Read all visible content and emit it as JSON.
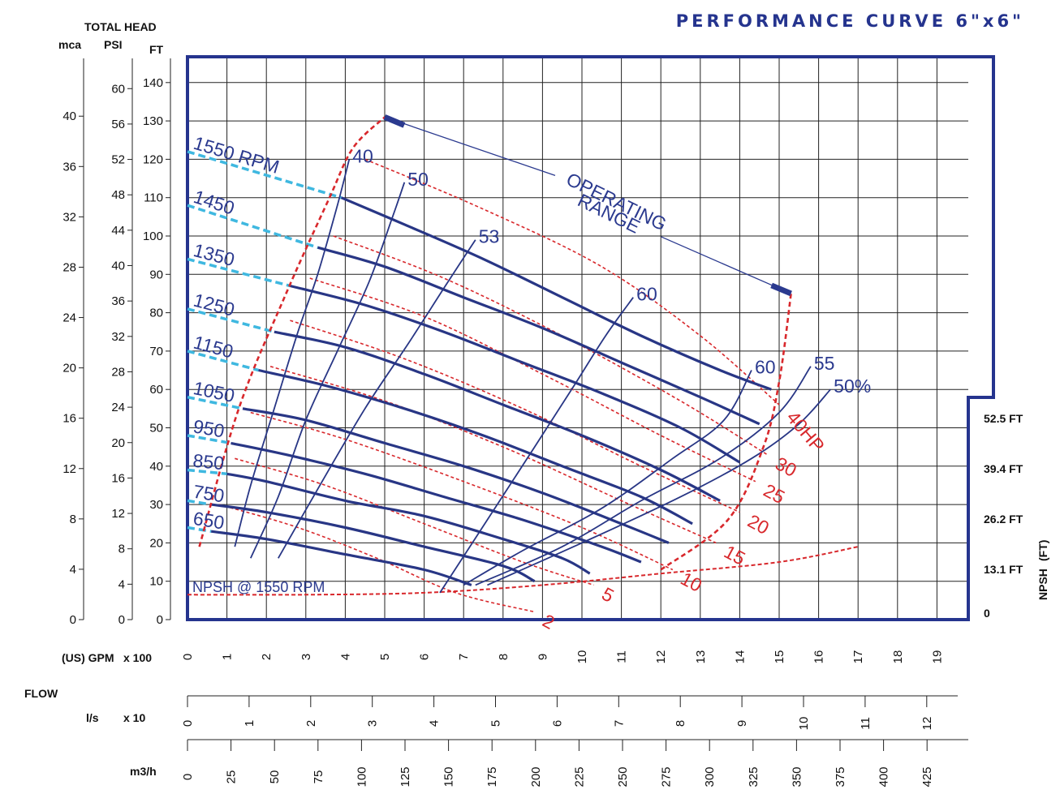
{
  "title": "PERFORMANCE CURVE  6\"x6\"",
  "colors": {
    "frame": "#25348e",
    "grid": "#222222",
    "speed_curve": "#283685",
    "efficiency_curve": "#283685",
    "power_curve": "#d8282c",
    "npsh_curve": "#d8282c",
    "extension": "#3fb8e0",
    "operating_range_line": "#2b3a8f"
  },
  "axes": {
    "total_head_label": "TOTAL HEAD",
    "mca_label": "mca",
    "psi_label": "PSI",
    "ft_label": "FT",
    "gpm_label": "(US) GPM",
    "gpm_mult": "x 100",
    "flow_label": "FLOW",
    "ls_label": "l/s",
    "ls_mult": "x 10",
    "m3h_label": "m3/h",
    "npsh_label": "NPSH",
    "npsh_unit": "(FT)"
  },
  "chart_data": {
    "type": "line",
    "title": "PERFORMANCE CURVE  6\"x6\"",
    "xlabel": "(US) GPM x 100",
    "ylabel": "TOTAL HEAD FT",
    "xlim": [
      0,
      20
    ],
    "ylim": [
      0,
      146
    ],
    "grid": true,
    "x_ticks": [
      "0",
      "1",
      "2",
      "3",
      "4",
      "5",
      "6",
      "7",
      "8",
      "9",
      "10",
      "11",
      "12",
      "13",
      "14",
      "15",
      "16",
      "17",
      "18",
      "19"
    ],
    "ft_ticks": [
      "0",
      "10",
      "20",
      "30",
      "40",
      "50",
      "60",
      "70",
      "80",
      "90",
      "100",
      "110",
      "120",
      "130",
      "140"
    ],
    "psi_ticks": [
      "0",
      "4",
      "8",
      "12",
      "16",
      "20",
      "24",
      "28",
      "32",
      "36",
      "40",
      "44",
      "48",
      "52",
      "56",
      "60"
    ],
    "mca_ticks": [
      "0",
      "4",
      "8",
      "12",
      "16",
      "20",
      "24",
      "28",
      "32",
      "36",
      "40"
    ],
    "ls_ticks": [
      "0",
      "1",
      "2",
      "3",
      "4",
      "5",
      "6",
      "7",
      "8",
      "9",
      "10",
      "11",
      "12"
    ],
    "m3h_ticks": [
      "0",
      "25",
      "50",
      "75",
      "100",
      "125",
      "150",
      "175",
      "200",
      "225",
      "250",
      "275",
      "300",
      "325",
      "350",
      "375",
      "400",
      "425"
    ],
    "npsh_ticks": [
      "52.5 FT",
      "39.4 FT",
      "26.2 FT",
      "13.1 FT",
      "0"
    ],
    "speed_series": [
      {
        "name": "1550 RPM",
        "label": "1550 RPM",
        "ext_x": [
          0,
          3.9
        ],
        "ext_y": [
          122,
          110
        ],
        "x": [
          3.9,
          5.5,
          7.5,
          9.5,
          11.5,
          13.5,
          14.8
        ],
        "y": [
          110,
          103,
          94,
          84,
          74,
          65,
          60
        ]
      },
      {
        "name": "1450",
        "label": "1450",
        "ext_x": [
          0,
          3.3
        ],
        "ext_y": [
          108,
          97
        ],
        "x": [
          3.3,
          5,
          7,
          9,
          11,
          13,
          14.5
        ],
        "y": [
          97,
          92,
          84,
          76,
          67,
          58,
          51
        ]
      },
      {
        "name": "1350",
        "label": "1350",
        "ext_x": [
          0,
          2.6
        ],
        "ext_y": [
          94,
          87
        ],
        "x": [
          2.6,
          4.5,
          6.5,
          8.5,
          10.5,
          12.5,
          14.0
        ],
        "y": [
          87,
          82,
          75,
          67,
          59,
          50,
          41
        ]
      },
      {
        "name": "1250",
        "label": "1250",
        "ext_x": [
          0,
          2.2
        ],
        "ext_y": [
          81,
          75
        ],
        "x": [
          2.2,
          4,
          6,
          8,
          10,
          12,
          13.5
        ],
        "y": [
          75,
          71,
          64,
          56,
          48,
          39,
          31
        ]
      },
      {
        "name": "1150",
        "label": "1150",
        "ext_x": [
          0,
          1.8
        ],
        "ext_y": [
          70,
          65
        ],
        "x": [
          1.8,
          3.5,
          5.5,
          7.5,
          9.5,
          11.5,
          12.8
        ],
        "y": [
          65,
          61,
          55,
          48,
          40,
          32,
          25
        ]
      },
      {
        "name": "1050",
        "label": "1050",
        "ext_x": [
          0,
          1.4
        ],
        "ext_y": [
          58,
          55
        ],
        "x": [
          1.4,
          3,
          5,
          7,
          9,
          11,
          12.2
        ],
        "y": [
          55,
          52,
          46,
          40,
          33,
          25,
          20
        ]
      },
      {
        "name": "950",
        "label": "950",
        "ext_x": [
          0,
          1.1
        ],
        "ext_y": [
          48,
          46
        ],
        "x": [
          1.1,
          2.5,
          4.5,
          6.5,
          8.5,
          10.5,
          11.5
        ],
        "y": [
          46,
          43,
          38,
          32,
          26,
          19,
          15
        ]
      },
      {
        "name": "850",
        "label": "850",
        "ext_x": [
          0,
          1.0
        ],
        "ext_y": [
          39,
          38
        ],
        "x": [
          1.0,
          2,
          4,
          6,
          8,
          9.5,
          10.2
        ],
        "y": [
          38,
          36,
          31,
          27,
          21,
          16,
          12
        ]
      },
      {
        "name": "750",
        "label": "750",
        "ext_x": [
          0,
          0.6
        ],
        "ext_y": [
          31,
          30
        ],
        "x": [
          0.6,
          2,
          4,
          6,
          8,
          8.8
        ],
        "y": [
          30,
          28,
          24,
          19,
          14,
          10
        ]
      },
      {
        "name": "650",
        "label": "650",
        "ext_x": [
          0,
          0.6
        ],
        "ext_y": [
          24,
          23
        ],
        "x": [
          0.6,
          2,
          4,
          6,
          7.2
        ],
        "y": [
          23,
          21,
          17,
          13,
          9
        ]
      }
    ],
    "efficiency_series": [
      {
        "name": "40",
        "label": "40",
        "x": [
          1.2,
          1.6,
          2.2,
          2.8,
          3.3,
          3.8,
          4.1
        ],
        "y": [
          19,
          35,
          55,
          75,
          90,
          108,
          120
        ]
      },
      {
        "name": "50",
        "label": "50",
        "x": [
          1.6,
          2.3,
          3.0,
          3.8,
          4.6,
          5.2,
          5.5
        ],
        "y": [
          16,
          32,
          52,
          70,
          88,
          105,
          114
        ]
      },
      {
        "name": "53",
        "label": "53",
        "x": [
          2.3,
          3.3,
          4.5,
          5.6,
          6.6,
          7.3
        ],
        "y": [
          16,
          34,
          55,
          72,
          88,
          99
        ]
      },
      {
        "name": "60",
        "label": "60",
        "x": [
          6.4,
          7.6,
          8.8,
          9.8,
          10.6,
          11.3
        ],
        "y": [
          7,
          26,
          45,
          61,
          74,
          84
        ]
      },
      {
        "name": "60",
        "label": "60",
        "x": [
          7.0,
          8.5,
          10.5,
          12.3,
          13.6,
          14.3
        ],
        "y": [
          9,
          18,
          29,
          42,
          52,
          65
        ]
      },
      {
        "name": "55",
        "label": "55",
        "x": [
          7.3,
          9.5,
          11.5,
          13.5,
          15.0,
          15.8
        ],
        "y": [
          9,
          19,
          31,
          42,
          54,
          66
        ]
      },
      {
        "name": "50%",
        "label": "50%",
        "x": [
          7.6,
          10,
          12.5,
          14.3,
          15.5,
          16.3
        ],
        "y": [
          9,
          20,
          32,
          42,
          51,
          60
        ]
      }
    ],
    "power_series": [
      {
        "name": "2",
        "label": "2",
        "x": [
          0.8,
          2.8,
          4.8,
          6.8,
          8.8
        ],
        "y": [
          30,
          24,
          16,
          7,
          2
        ]
      },
      {
        "name": "5",
        "label": "5",
        "x": [
          1.2,
          3.5,
          6,
          8.5,
          10.3
        ],
        "y": [
          42,
          35,
          25,
          15,
          9
        ]
      },
      {
        "name": "10",
        "label": "10",
        "x": [
          1.6,
          4,
          7,
          10,
          12.3
        ],
        "y": [
          54,
          47,
          36,
          24,
          13
        ]
      },
      {
        "name": "15",
        "label": "15",
        "x": [
          2.1,
          5,
          8,
          11,
          13.4
        ],
        "y": [
          66,
          57,
          45,
          31,
          20
        ]
      },
      {
        "name": "20",
        "label": "20",
        "x": [
          2.6,
          5.5,
          8.5,
          11.5,
          14.0
        ],
        "y": [
          78,
          68,
          55,
          40,
          28
        ]
      },
      {
        "name": "25",
        "label": "25",
        "x": [
          3.1,
          6,
          9,
          12,
          14.4
        ],
        "y": [
          89,
          79,
          64,
          48,
          36
        ]
      },
      {
        "name": "30",
        "label": "30",
        "x": [
          3.7,
          6.5,
          9.5,
          12.5,
          14.7
        ],
        "y": [
          100,
          89,
          74,
          57,
          43
        ]
      },
      {
        "name": "40HP",
        "label": "40HP",
        "x": [
          4.5,
          7.5,
          10.5,
          13,
          15.0
        ],
        "y": [
          120,
          107,
          92,
          74,
          56
        ]
      }
    ],
    "npsh_curve": {
      "label": "NPSH @ 1550 RPM",
      "x": [
        0,
        3,
        6,
        9,
        12,
        15,
        17
      ],
      "y": [
        6.5,
        6.5,
        7,
        9,
        12,
        15,
        19
      ]
    },
    "operating_range": {
      "label_line1": "OPERATING",
      "label_line2": "RANGE",
      "start": {
        "x": 5.0,
        "y": 131
      },
      "end": {
        "x": 15.3,
        "y": 85
      },
      "left_boundary_x": [
        0.3,
        1.3,
        2.5,
        3.6,
        4.2,
        5.0
      ],
      "left_boundary_y": [
        19,
        55,
        85,
        110,
        123,
        131
      ],
      "right_boundary_x": [
        12.0,
        13.7,
        14.6,
        15.0,
        15.3
      ],
      "right_boundary_y": [
        13,
        26,
        45,
        62,
        85
      ]
    }
  }
}
